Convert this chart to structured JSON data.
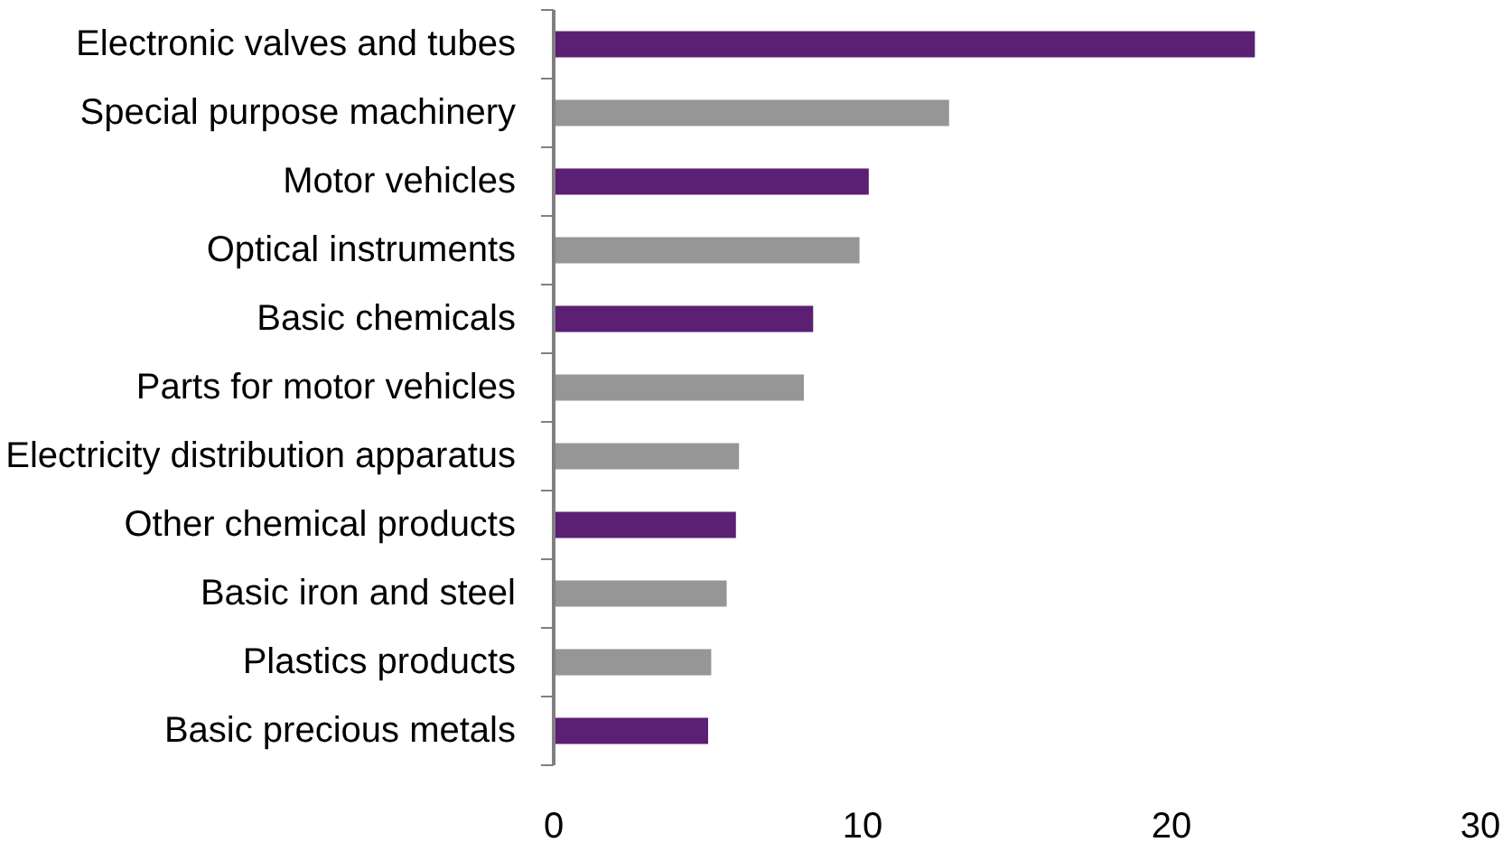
{
  "chart_data": {
    "type": "bar",
    "orientation": "horizontal",
    "categories": [
      "Electronic valves and tubes",
      "Special purpose machinery",
      "Motor vehicles",
      "Optical instruments",
      "Basic chemicals",
      "Parts for motor vehicles",
      "Electricity distribution apparatus",
      "Other chemical products",
      "Basic iron and steel",
      "Plastics products",
      "Basic precious metals"
    ],
    "values": [
      22.7,
      12.8,
      10.2,
      9.9,
      8.4,
      8.1,
      6.0,
      5.9,
      5.6,
      5.1,
      5.0
    ],
    "colors": [
      "#5b1f73",
      "#969696",
      "#5b1f73",
      "#969696",
      "#5b1f73",
      "#969696",
      "#969696",
      "#5b1f73",
      "#969696",
      "#969696",
      "#5b1f73"
    ],
    "xlim": [
      0,
      30
    ],
    "xticks": [
      0,
      10,
      20,
      30
    ],
    "grid": false
  }
}
